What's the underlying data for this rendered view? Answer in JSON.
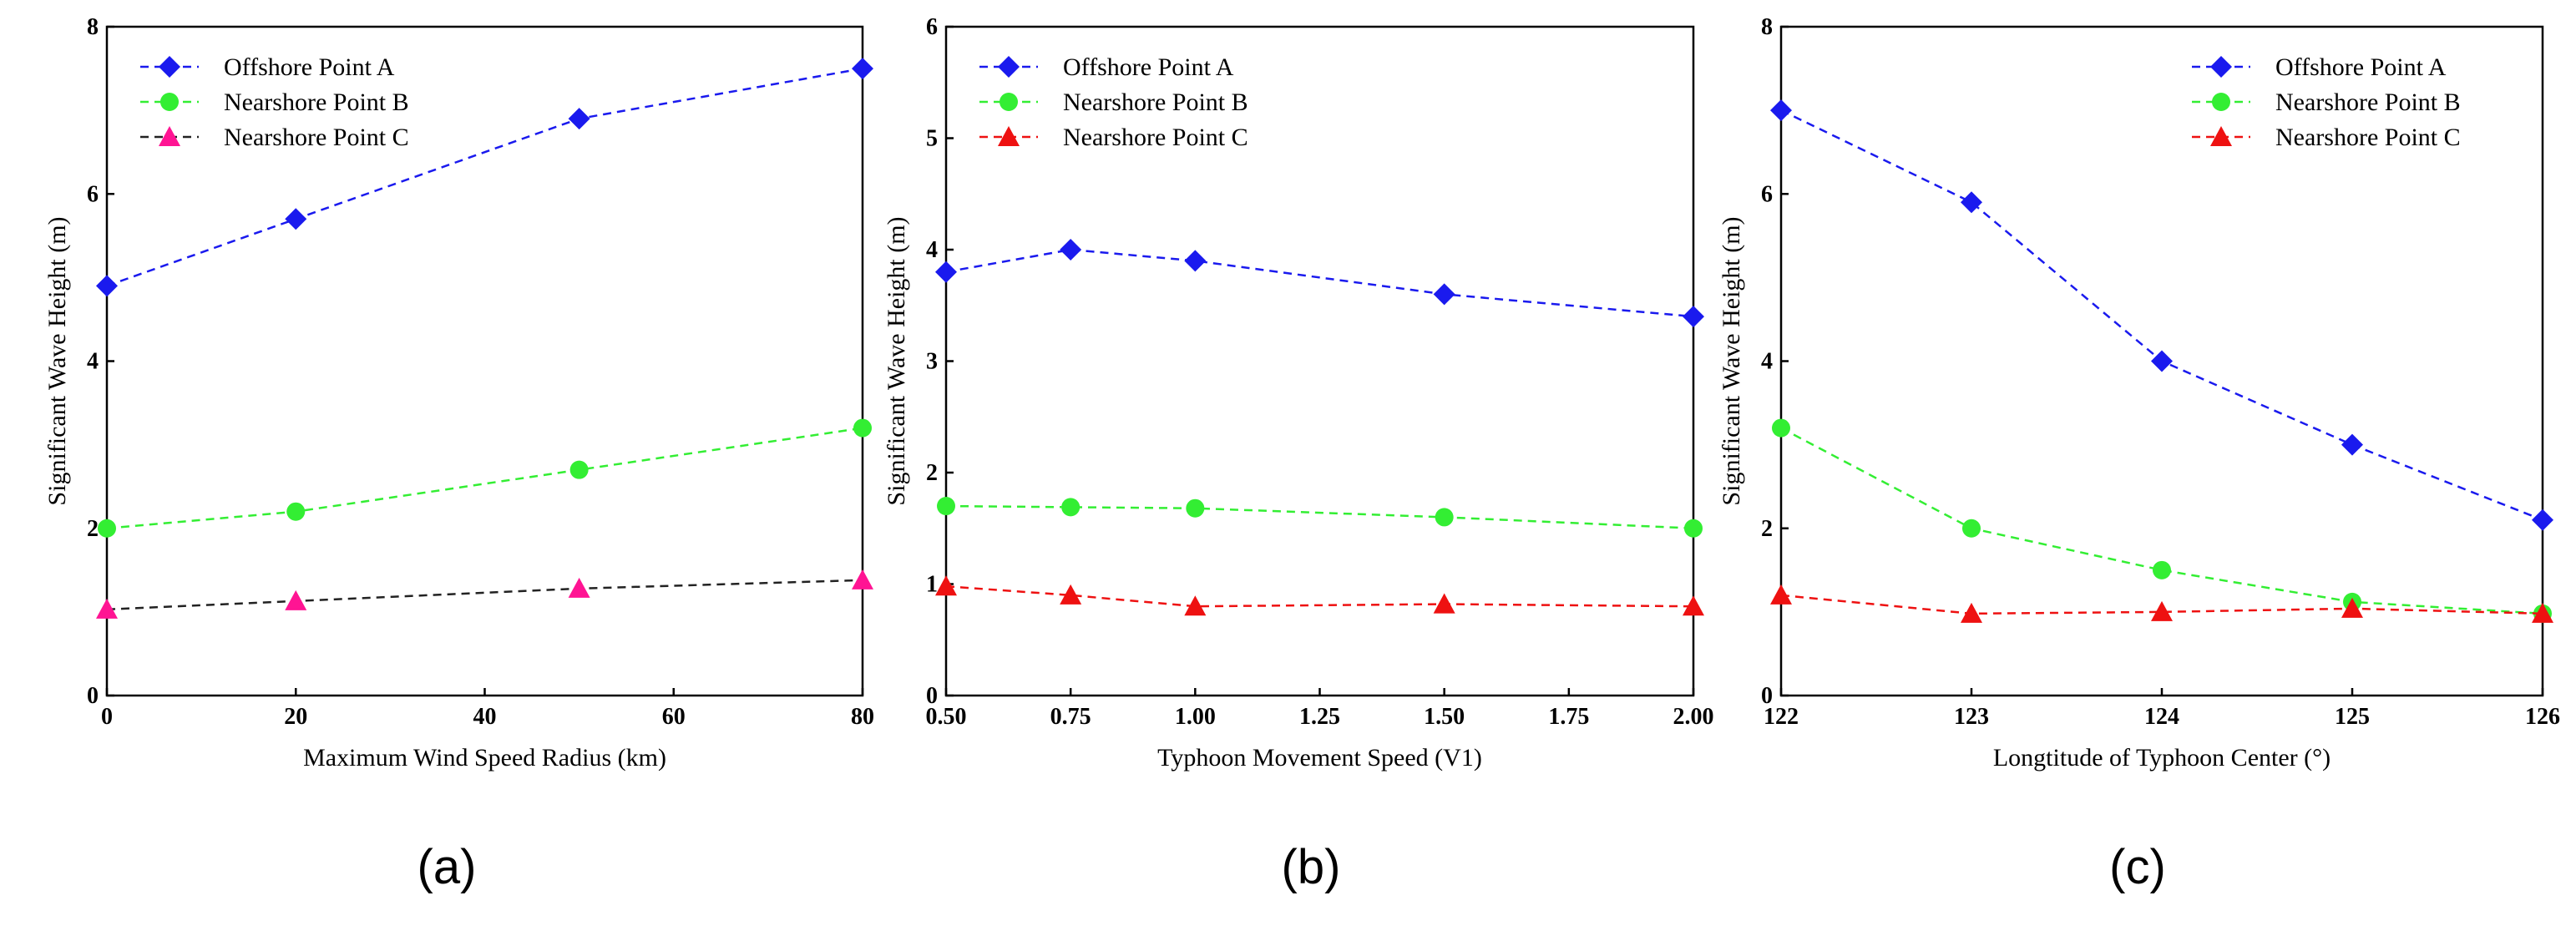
{
  "chart_data": [
    {
      "type": "line",
      "panel_label": "(a)",
      "xlabel": "Maximum Wind Speed Radius (km)",
      "ylabel": "Significant Wave Height (m)",
      "x": [
        0,
        20,
        50,
        80
      ],
      "xlim": [
        0,
        80
      ],
      "ylim": [
        0,
        8
      ],
      "xticks": [
        "0",
        "20",
        "40",
        "60",
        "80"
      ],
      "xtick_values": [
        0,
        20,
        40,
        60,
        80
      ],
      "yticks": [
        "0",
        "2",
        "4",
        "6",
        "8"
      ],
      "ytick_values": [
        0,
        2,
        4,
        6,
        8
      ],
      "legend_position": "top-left",
      "series": [
        {
          "name": "Offshore Point A",
          "values": [
            4.9,
            5.7,
            6.9,
            7.5
          ],
          "color": "#1a1aee",
          "marker": "diamond"
        },
        {
          "name": "Nearshore Point B",
          "values": [
            2.0,
            2.2,
            2.7,
            3.2
          ],
          "color": "#33ee33",
          "marker": "circle"
        },
        {
          "name": "Nearshore Point C",
          "values": [
            1.03,
            1.13,
            1.28,
            1.38
          ],
          "color": "#222222",
          "marker_color": "#ff1493",
          "marker": "triangle"
        }
      ]
    },
    {
      "type": "line",
      "panel_label": "(b)",
      "xlabel": "Typhoon Movement Speed (V1)",
      "ylabel": "Significant Wave Height (m)",
      "x": [
        0.5,
        0.75,
        1.0,
        1.5,
        2.0
      ],
      "xlim": [
        0.5,
        2.0
      ],
      "ylim": [
        0,
        6
      ],
      "xticks": [
        "0.50",
        "0.75",
        "1.00",
        "1.25",
        "1.50",
        "1.75",
        "2.00"
      ],
      "xtick_values": [
        0.5,
        0.75,
        1.0,
        1.25,
        1.5,
        1.75,
        2.0
      ],
      "yticks": [
        "0",
        "1",
        "2",
        "3",
        "4",
        "5",
        "6"
      ],
      "ytick_values": [
        0,
        1,
        2,
        3,
        4,
        5,
        6
      ],
      "legend_position": "top-left",
      "series": [
        {
          "name": "Offshore Point A",
          "values": [
            3.8,
            4.0,
            3.9,
            3.6,
            3.4
          ],
          "color": "#1a1aee",
          "marker": "diamond"
        },
        {
          "name": "Nearshore Point B",
          "values": [
            1.7,
            1.69,
            1.68,
            1.6,
            1.5
          ],
          "color": "#33ee33",
          "marker": "circle"
        },
        {
          "name": "Nearshore Point C",
          "values": [
            0.98,
            0.9,
            0.8,
            0.82,
            0.8
          ],
          "color": "#ee1111",
          "marker_color": "#ee1111",
          "marker": "triangle"
        }
      ]
    },
    {
      "type": "line",
      "panel_label": "(c)",
      "xlabel": "Longtitude of Typhoon Center (°)",
      "ylabel": "Significant Wave Height (m)",
      "x": [
        122,
        123,
        124,
        125,
        126
      ],
      "xlim": [
        122,
        126
      ],
      "ylim": [
        0,
        8
      ],
      "xticks": [
        "122",
        "123",
        "124",
        "125",
        "126"
      ],
      "xtick_values": [
        122,
        123,
        124,
        125,
        126
      ],
      "yticks": [
        "0",
        "2",
        "4",
        "6",
        "8"
      ],
      "ytick_values": [
        0,
        2,
        4,
        6,
        8
      ],
      "legend_position": "top-right",
      "series": [
        {
          "name": "Offshore Point A",
          "values": [
            7.0,
            5.9,
            4.0,
            3.0,
            2.1
          ],
          "color": "#1a1aee",
          "marker": "diamond"
        },
        {
          "name": "Nearshore Point B",
          "values": [
            3.2,
            2.0,
            1.5,
            1.12,
            0.98
          ],
          "color": "#33ee33",
          "marker": "circle"
        },
        {
          "name": "Nearshore Point C",
          "values": [
            1.2,
            0.98,
            1.0,
            1.04,
            0.98
          ],
          "color": "#ee1111",
          "marker_color": "#ee1111",
          "marker": "triangle"
        }
      ]
    }
  ]
}
